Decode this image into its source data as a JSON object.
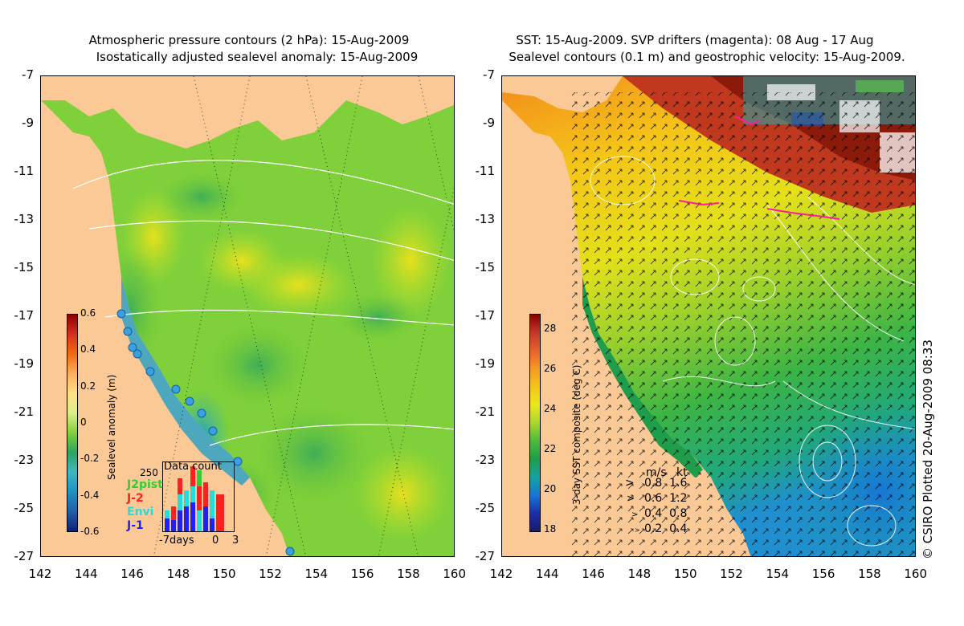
{
  "left_panel": {
    "title_line1": "Atmospheric pressure contours (2 hPa): 15-Aug-2009",
    "title_line2": "Isostatically adjusted sealevel anomaly: 15-Aug-2009",
    "colorbar": {
      "label": "Sealevel anomaly (m)",
      "ticks": [
        "0.6",
        "0.4",
        "0.2",
        "0",
        "-0.2",
        "-0.4",
        "-0.6"
      ],
      "colors": [
        "#8b0000",
        "#d7301f",
        "#f16913",
        "#fdae61",
        "#fee08b",
        "#d9ef8b",
        "#7fd13b",
        "#2ca25f",
        "#41b6c4",
        "#1d91c0",
        "#225ea8",
        "#0c1f7a"
      ]
    },
    "data_count": {
      "title": "Data count",
      "max_label": "250",
      "x_labels": [
        "-7days",
        "0",
        "3"
      ],
      "legend": [
        {
          "name": "J2pist",
          "color": "#33cc33"
        },
        {
          "name": "J-2",
          "color": "#ff2020"
        },
        {
          "name": "Envi",
          "color": "#22dddd"
        },
        {
          "name": "J-1",
          "color": "#2020ff"
        }
      ]
    }
  },
  "right_panel": {
    "title_line1": "SST: 15-Aug-2009. SVP drifters (magenta): 08 Aug - 17 Aug",
    "title_line2": "Sealevel contours (0.1 m) and geostrophic velocity: 15-Aug-2009.",
    "colorbar": {
      "label": "3-day SST composite (deg C)",
      "ticks": [
        "28",
        "26",
        "24",
        "22",
        "20",
        "18"
      ],
      "colors": [
        "#8b0000",
        "#c0392b",
        "#e8622c",
        "#f59a23",
        "#f5c518",
        "#e8e81c",
        "#a8d82a",
        "#4cbb3a",
        "#1e9e4a",
        "#14a3a3",
        "#1577d6",
        "#1b2fa8",
        "#1a1a6e"
      ]
    },
    "speed_key": {
      "header_ms": "m/s",
      "header_kt": "kt",
      "rows": [
        {
          "ms": "0.8",
          "kt": "1.6"
        },
        {
          "ms": "0.6",
          "kt": "1.2"
        },
        {
          "ms": "0.4",
          "kt": "0.8"
        },
        {
          "ms": "0.2",
          "kt": "0.4"
        }
      ]
    },
    "credit": "© CSIRO Plotted 20-Aug-2009 08:33"
  },
  "axes": {
    "y_ticks": [
      "-7",
      "-9",
      "-11",
      "-13",
      "-15",
      "-17",
      "-19",
      "-21",
      "-23",
      "-25",
      "-27"
    ],
    "x_ticks": [
      "142",
      "144",
      "146",
      "148",
      "150",
      "152",
      "154",
      "156",
      "158",
      "160"
    ]
  },
  "colors": {
    "land": "#fbc995",
    "ocean_mid": "#8ed62c",
    "ocean_left_base": "#5fc43a"
  }
}
